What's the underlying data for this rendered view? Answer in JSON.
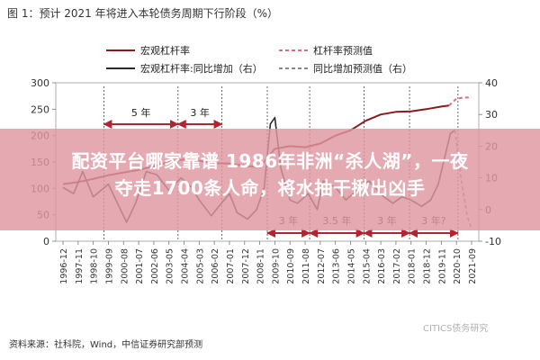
{
  "figure_title": "图 1：预计 2021 年将进入本轮债务周期下行阶段（%）",
  "overlay": {
    "line1": "配资平台哪家靠谱 1986年非洲“杀人湖”，一夜",
    "line2": "夺走1700条人命，将水抽干揪出凶手"
  },
  "source_note": "资料来源：社科院，Wind，中信证券研究部预测",
  "watermark": "CITICS债务研究",
  "colors": {
    "leverage": "#8a1a1f",
    "leverage_forecast": "#d9717b",
    "yoy": "#2a2a2a",
    "yoy_forecast": "#888888",
    "arrow": "#b32330",
    "overlay": "#de96a0"
  },
  "chart_data": {
    "type": "line",
    "y_left": {
      "ylim": [
        0,
        300
      ],
      "ticks": [
        "0",
        "50",
        "100",
        "150",
        "200",
        "250",
        "300"
      ]
    },
    "y_right": {
      "ylim": [
        -10,
        40
      ],
      "ticks": [
        "-10",
        "0",
        "10",
        "20",
        "30",
        "40"
      ]
    },
    "x_tick_labels": [
      "1996-12",
      "1997-11",
      "1998-10",
      "1999-09",
      "2000-08",
      "2001-07",
      "2002-06",
      "2003-05",
      "2004-04",
      "2005-03",
      "2006-02",
      "2007-01",
      "2007-12",
      "2008-11",
      "2009-10",
      "2010-09",
      "2011-08",
      "2012-07",
      "2013-06",
      "2014-05",
      "2015-04",
      "2016-03",
      "2017-02",
      "2018-01",
      "2018-12",
      "2019-11",
      "2020-10",
      "2021-09"
    ],
    "legend": [
      {
        "key": "leverage",
        "label": "宏观杠杆率",
        "style": "solid",
        "color": "#8a1a1f"
      },
      {
        "key": "leverage_forecast",
        "label": "杠杆率预测值",
        "style": "dashed",
        "color": "#d9717b"
      },
      {
        "key": "yoy",
        "label": "宏观杠杆率:同比增加（右）",
        "style": "solid",
        "color": "#2a2a2a"
      },
      {
        "key": "yoy_forecast",
        "label": "同比增加预测值（右）",
        "style": "dashed",
        "color": "#888888"
      }
    ],
    "series": [
      {
        "key": "leverage",
        "axis": "left",
        "points": [
          [
            0,
            108
          ],
          [
            1,
            112
          ],
          [
            2,
            118
          ],
          [
            3,
            125
          ],
          [
            4,
            130
          ],
          [
            5,
            135
          ],
          [
            6,
            142
          ],
          [
            7,
            150
          ],
          [
            8,
            155
          ],
          [
            9,
            152
          ],
          [
            10,
            148
          ],
          [
            11,
            147
          ],
          [
            12,
            143
          ],
          [
            13,
            140
          ],
          [
            14,
            175
          ],
          [
            15,
            180
          ],
          [
            16,
            178
          ],
          [
            17,
            185
          ],
          [
            18,
            200
          ],
          [
            19,
            210
          ],
          [
            20,
            228
          ],
          [
            21,
            240
          ],
          [
            22,
            245
          ],
          [
            23,
            246
          ],
          [
            24,
            250
          ],
          [
            25,
            255
          ],
          [
            25.5,
            257
          ]
        ]
      },
      {
        "key": "leverage_forecast",
        "axis": "left",
        "points": [
          [
            25.5,
            257
          ],
          [
            26,
            270
          ],
          [
            26.5,
            272
          ],
          [
            27,
            272
          ]
        ]
      },
      {
        "key": "yoy",
        "axis": "right",
        "points": [
          [
            0,
            7
          ],
          [
            0.7,
            5
          ],
          [
            1.3,
            12
          ],
          [
            2,
            4
          ],
          [
            3,
            8
          ],
          [
            3.7,
            1
          ],
          [
            4.2,
            -4
          ],
          [
            4.8,
            2
          ],
          [
            5.5,
            12
          ],
          [
            6.2,
            11
          ],
          [
            7,
            6
          ],
          [
            7.8,
            10
          ],
          [
            8.5,
            7
          ],
          [
            9,
            3
          ],
          [
            9.8,
            -2
          ],
          [
            10.3,
            1
          ],
          [
            11,
            5
          ],
          [
            11.5,
            -1
          ],
          [
            12.2,
            -3
          ],
          [
            12.8,
            0
          ],
          [
            13.3,
            7
          ],
          [
            13.7,
            27
          ],
          [
            14,
            29
          ],
          [
            14.4,
            13
          ],
          [
            15,
            3
          ],
          [
            15.5,
            2
          ],
          [
            16.2,
            5
          ],
          [
            16.8,
            0
          ],
          [
            17.2,
            9
          ],
          [
            18,
            7
          ],
          [
            18.7,
            3
          ],
          [
            19.4,
            6
          ],
          [
            20.2,
            9
          ],
          [
            20.6,
            7
          ],
          [
            21.2,
            4
          ],
          [
            21.8,
            2
          ],
          [
            22.4,
            4
          ],
          [
            23,
            3
          ],
          [
            23.7,
            1
          ],
          [
            24.3,
            3
          ],
          [
            24.8,
            8
          ],
          [
            25.3,
            18
          ],
          [
            25.6,
            24
          ],
          [
            25.9,
            25
          ]
        ]
      },
      {
        "key": "yoy_forecast",
        "axis": "right",
        "points": [
          [
            25.9,
            25
          ],
          [
            26.3,
            10
          ],
          [
            26.7,
            -2
          ],
          [
            27,
            -6
          ]
        ]
      }
    ],
    "annotations": [
      {
        "label": "5 年",
        "x_from": 2.7,
        "x_to": 7.6,
        "row": "top"
      },
      {
        "label": "3 年",
        "x_from": 7.6,
        "x_to": 10.5,
        "row": "top"
      },
      {
        "label": "3 年",
        "x_from": 13.5,
        "x_to": 16.3,
        "row": "bottom"
      },
      {
        "label": "3.5 年",
        "x_from": 16.3,
        "x_to": 19.9,
        "row": "bottom"
      },
      {
        "label": "3 年",
        "x_from": 19.9,
        "x_to": 22.9,
        "row": "bottom"
      },
      {
        "label": "3 年?",
        "x_from": 22.9,
        "x_to": 26.1,
        "row": "bottom"
      }
    ]
  }
}
